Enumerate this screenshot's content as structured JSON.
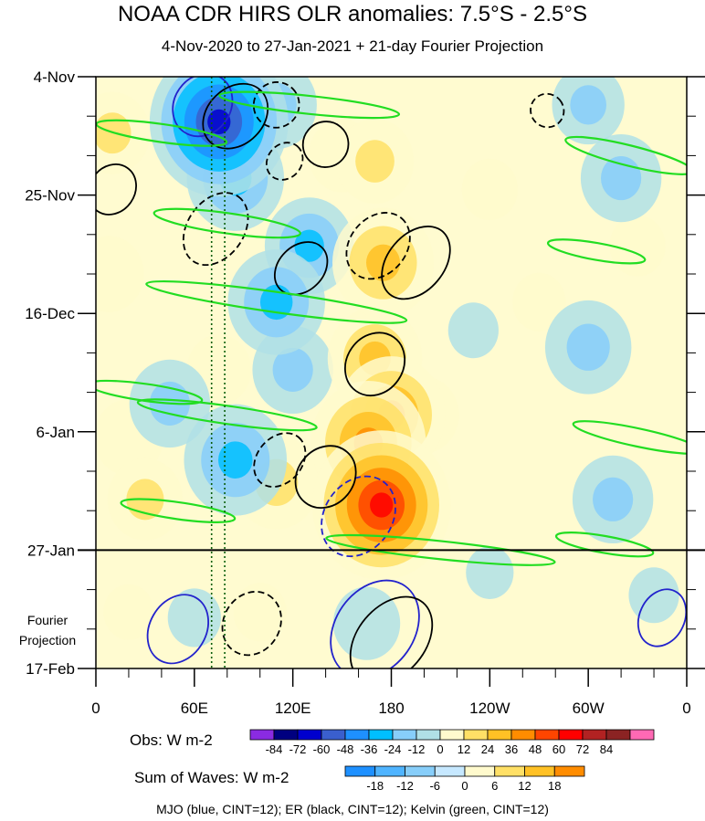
{
  "chart_data": {
    "type": "heatmap",
    "title": "NOAA CDR HIRS OLR anomalies: 7.5°S - 2.5°S",
    "subtitle": "4-Nov-2020 to 27-Jan-2021 + 21-day Fourier Projection",
    "x_tick_labels": [
      "0",
      "60E",
      "120E",
      "180",
      "120W",
      "60W",
      "0"
    ],
    "x_ticks_deg": [
      0,
      60,
      120,
      180,
      240,
      300,
      360
    ],
    "y_tick_labels": [
      "4-Nov",
      "25-Nov",
      "16-Dec",
      "6-Jan",
      "27-Jan",
      "17-Feb"
    ],
    "y_ticks_day": [
      0,
      21,
      42,
      63,
      84,
      105
    ],
    "observation_end_day": 84,
    "projection_label": [
      "Fourier",
      "Projection"
    ],
    "dotted_lines_lon_deg": [
      70.5,
      78.5
    ],
    "anomaly_centers": [
      {
        "lon": 174,
        "day": 76,
        "value": 72
      },
      {
        "lon": 166,
        "day": 65,
        "value": 55
      },
      {
        "lon": 180,
        "day": 60,
        "value": 50
      },
      {
        "lon": 175,
        "day": 33,
        "value": 45
      },
      {
        "lon": 170,
        "day": 50,
        "value": 40
      },
      {
        "lon": 170,
        "day": 15,
        "value": 28
      },
      {
        "lon": 10,
        "day": 10,
        "value": 26
      },
      {
        "lon": 8,
        "day": 35,
        "value": 22
      },
      {
        "lon": 30,
        "day": 75,
        "value": 26
      },
      {
        "lon": 110,
        "day": 72,
        "value": 34
      },
      {
        "lon": 200,
        "day": 60,
        "value": 22
      },
      {
        "lon": 20,
        "day": 64,
        "value": 22
      },
      {
        "lon": 150,
        "day": 14,
        "value": 20
      },
      {
        "lon": 55,
        "day": 5,
        "value": 20
      },
      {
        "lon": 75,
        "day": 52,
        "value": 18
      },
      {
        "lon": 240,
        "day": 20,
        "value": 12
      },
      {
        "lon": 270,
        "day": 40,
        "value": 10
      },
      {
        "lon": 330,
        "day": 30,
        "value": 12
      },
      {
        "lon": 20,
        "day": 95,
        "value": 8
      },
      {
        "lon": 100,
        "day": 95,
        "value": 10
      },
      {
        "lon": 75,
        "day": 8,
        "value": -72
      },
      {
        "lon": 85,
        "day": 18,
        "value": -42
      },
      {
        "lon": 110,
        "day": 40,
        "value": -42
      },
      {
        "lon": 85,
        "day": 68,
        "value": -46
      },
      {
        "lon": 120,
        "day": 52,
        "value": -30
      },
      {
        "lon": 130,
        "day": 30,
        "value": -36
      },
      {
        "lon": 45,
        "day": 58,
        "value": -30
      },
      {
        "lon": 110,
        "day": 5,
        "value": -30
      },
      {
        "lon": 300,
        "day": 48,
        "value": -34
      },
      {
        "lon": 320,
        "day": 18,
        "value": -30
      },
      {
        "lon": 315,
        "day": 75,
        "value": -30
      },
      {
        "lon": 300,
        "day": 5,
        "value": -24
      },
      {
        "lon": 165,
        "day": 97,
        "value": -20
      },
      {
        "lon": 60,
        "day": 96,
        "value": -10
      },
      {
        "lon": 340,
        "day": 92,
        "value": -8
      },
      {
        "lon": 230,
        "day": 45,
        "value": -8
      },
      {
        "lon": 240,
        "day": 88,
        "value": -6
      }
    ],
    "wave_contours": [
      {
        "wave": "MJO",
        "color": "#2222cc",
        "sign": 1,
        "lon": 170,
        "day": 98,
        "rx": 32,
        "ry": 7,
        "angle": -55
      },
      {
        "wave": "MJO",
        "color": "#2222cc",
        "sign": -1,
        "lon": 160,
        "day": 78,
        "rx": 26,
        "ry": 6,
        "angle": -55
      },
      {
        "wave": "MJO",
        "color": "#2222cc",
        "sign": 1,
        "lon": 50,
        "day": 98,
        "rx": 22,
        "ry": 5,
        "angle": -60
      },
      {
        "wave": "MJO",
        "color": "#2222cc",
        "sign": 1,
        "lon": 345,
        "day": 96,
        "rx": 18,
        "ry": 4,
        "angle": -65
      },
      {
        "wave": "MJO",
        "color": "#2222cc",
        "sign": 1,
        "lon": 65,
        "day": 5,
        "rx": 20,
        "ry": 5,
        "angle": -55
      },
      {
        "wave": "ER",
        "color": "#000000",
        "sign": 1,
        "lon": 180,
        "day": 100,
        "rx": 30,
        "ry": 6,
        "angle": -50
      },
      {
        "wave": "ER",
        "color": "#000000",
        "sign": -1,
        "lon": 95,
        "day": 97,
        "rx": 20,
        "ry": 5,
        "angle": -60
      },
      {
        "wave": "ER",
        "color": "#000000",
        "sign": 1,
        "lon": 195,
        "day": 33,
        "rx": 25,
        "ry": 5,
        "angle": -50
      },
      {
        "wave": "ER",
        "color": "#000000",
        "sign": -1,
        "lon": 172,
        "day": 30,
        "rx": 22,
        "ry": 5,
        "angle": -50
      },
      {
        "wave": "ER",
        "color": "#000000",
        "sign": 1,
        "lon": 170,
        "day": 51,
        "rx": 20,
        "ry": 5,
        "angle": -55
      },
      {
        "wave": "ER",
        "color": "#000000",
        "sign": 1,
        "lon": 140,
        "day": 71,
        "rx": 20,
        "ry": 5,
        "angle": -50
      },
      {
        "wave": "ER",
        "color": "#000000",
        "sign": -1,
        "lon": 112,
        "day": 68,
        "rx": 18,
        "ry": 4,
        "angle": -50
      },
      {
        "wave": "ER",
        "color": "#000000",
        "sign": 1,
        "lon": 125,
        "day": 34,
        "rx": 18,
        "ry": 4,
        "angle": -45
      },
      {
        "wave": "ER",
        "color": "#000000",
        "sign": -1,
        "lon": 73,
        "day": 27,
        "rx": 24,
        "ry": 5,
        "angle": -55
      },
      {
        "wave": "ER",
        "color": "#000000",
        "sign": 1,
        "lon": 85,
        "day": 7,
        "rx": 22,
        "ry": 5,
        "angle": -45
      },
      {
        "wave": "ER",
        "color": "#000000",
        "sign": -1,
        "lon": 110,
        "day": 5,
        "rx": 14,
        "ry": 4,
        "angle": -45
      },
      {
        "wave": "ER",
        "color": "#000000",
        "sign": 1,
        "lon": 140,
        "day": 12,
        "rx": 14,
        "ry": 4,
        "angle": -50
      },
      {
        "wave": "ER",
        "color": "#000000",
        "sign": -1,
        "lon": 115,
        "day": 15,
        "rx": 12,
        "ry": 3,
        "angle": -50
      },
      {
        "wave": "ER",
        "color": "#000000",
        "sign": 1,
        "lon": 10,
        "day": 20,
        "rx": 16,
        "ry": 4,
        "angle": -55
      },
      {
        "wave": "ER",
        "color": "#000000",
        "sign": -1,
        "lon": 275,
        "day": 6,
        "rx": 10,
        "ry": 3,
        "angle": -40
      },
      {
        "wave": "Kelvin",
        "color": "#22dd22",
        "sign": 1,
        "lon": 110,
        "day": 40,
        "rx": 80,
        "ry": 1.8,
        "angle": 8
      },
      {
        "wave": "Kelvin",
        "color": "#22dd22",
        "sign": 1,
        "lon": 80,
        "day": 26,
        "rx": 45,
        "ry": 1.8,
        "angle": 8
      },
      {
        "wave": "Kelvin",
        "color": "#22dd22",
        "sign": 1,
        "lon": 80,
        "day": 60,
        "rx": 55,
        "ry": 1.6,
        "angle": 8
      },
      {
        "wave": "Kelvin",
        "color": "#22dd22",
        "sign": 1,
        "lon": 210,
        "day": 84,
        "rx": 70,
        "ry": 1.6,
        "angle": 6
      },
      {
        "wave": "Kelvin",
        "color": "#22dd22",
        "sign": 1,
        "lon": 130,
        "day": 5,
        "rx": 55,
        "ry": 1.6,
        "angle": 6
      },
      {
        "wave": "Kelvin",
        "color": "#22dd22",
        "sign": 1,
        "lon": 40,
        "day": 10,
        "rx": 40,
        "ry": 1.6,
        "angle": 8
      },
      {
        "wave": "Kelvin",
        "color": "#22dd22",
        "sign": 1,
        "lon": 325,
        "day": 14,
        "rx": 40,
        "ry": 1.8,
        "angle": 14
      },
      {
        "wave": "Kelvin",
        "color": "#22dd22",
        "sign": 1,
        "lon": 330,
        "day": 64,
        "rx": 40,
        "ry": 1.6,
        "angle": 12
      },
      {
        "wave": "Kelvin",
        "color": "#22dd22",
        "sign": 1,
        "lon": 305,
        "day": 31,
        "rx": 30,
        "ry": 1.5,
        "angle": 10
      },
      {
        "wave": "Kelvin",
        "color": "#22dd22",
        "sign": 1,
        "lon": 30,
        "day": 56,
        "rx": 35,
        "ry": 1.5,
        "angle": 8
      },
      {
        "wave": "Kelvin",
        "color": "#22dd22",
        "sign": 1,
        "lon": 50,
        "day": 77,
        "rx": 35,
        "ry": 1.5,
        "angle": 8
      },
      {
        "wave": "Kelvin",
        "color": "#22dd22",
        "sign": 1,
        "lon": 310,
        "day": 83,
        "rx": 30,
        "ry": 1.5,
        "angle": 10
      }
    ]
  },
  "colorbar_obs": {
    "label": "Obs: W m-2",
    "ticks": [
      "-84",
      "-72",
      "-60",
      "-48",
      "-36",
      "-24",
      "-12",
      "0",
      "12",
      "24",
      "36",
      "48",
      "60",
      "72",
      "84"
    ],
    "colors": [
      "#8a2be2",
      "#000080",
      "#0000cd",
      "#3a5fcd",
      "#1e90ff",
      "#00bfff",
      "#87cefa",
      "#b0e0e6",
      "#fffacd",
      "#ffe066",
      "#ffc125",
      "#ff8c00",
      "#ff4500",
      "#ff0000",
      "#b22222",
      "#8b2323",
      "#ff69b4"
    ]
  },
  "colorbar_waves": {
    "label": "Sum of Waves: W m-2",
    "ticks": [
      "-18",
      "-12",
      "-6",
      "0",
      "6",
      "12",
      "18"
    ],
    "colors": [
      "#1e90ff",
      "#4fb4ff",
      "#87cefa",
      "#c6e8ff",
      "#fffacd",
      "#ffe066",
      "#ffc125",
      "#ff8c00"
    ]
  },
  "footnote": "MJO (blue, CINT=12); ER (black, CINT=12); Kelvin (green, CINT=12)"
}
